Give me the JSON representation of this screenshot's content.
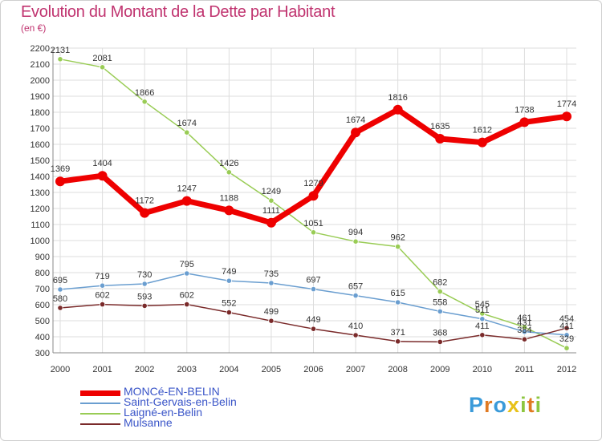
{
  "title": "Evolution du Montant de la Dette par Habitant",
  "subtitle": "(en €)",
  "logo": {
    "letters": [
      "P",
      "r",
      "o",
      "x",
      "i",
      "t",
      "i"
    ],
    "colors": [
      "#3a9ad9",
      "#e07a22",
      "#3a9ad9",
      "#e8c21a",
      "#8dc63f",
      "#e07a22",
      "#8dc63f"
    ]
  },
  "chart_data": {
    "type": "line",
    "x": [
      "2000",
      "2001",
      "2002",
      "2003",
      "2004",
      "2005",
      "2006",
      "2007",
      "2008",
      "2009",
      "2010",
      "2011",
      "2012"
    ],
    "ylim": [
      300,
      2200
    ],
    "yticks": [
      300,
      400,
      500,
      600,
      700,
      800,
      900,
      1000,
      1100,
      1200,
      1300,
      1400,
      1500,
      1600,
      1700,
      1800,
      1900,
      2000,
      2100,
      2200
    ],
    "grid": true,
    "legend_position": "bottom-left",
    "series": [
      {
        "name": "MONCé-EN-BELIN",
        "color": "#ee0000",
        "width": 7,
        "values": [
          1369,
          1404,
          1172,
          1247,
          1188,
          1111,
          1279,
          1674,
          1816,
          1635,
          1612,
          1738,
          1774
        ]
      },
      {
        "name": "Saint-Gervais-en-Belin",
        "color": "#6a9ed0",
        "width": 1.5,
        "values": [
          695,
          719,
          730,
          795,
          749,
          735,
          697,
          657,
          615,
          558,
          511,
          431,
          411
        ]
      },
      {
        "name": "Laigné-en-Belin",
        "color": "#99cc55",
        "width": 1.5,
        "values": [
          2131,
          2081,
          1866,
          1674,
          1426,
          1249,
          1051,
          994,
          962,
          682,
          545,
          461,
          329
        ]
      },
      {
        "name": "Mulsanne",
        "color": "#7a2a2a",
        "width": 1.5,
        "values": [
          580,
          602,
          593,
          602,
          552,
          499,
          449,
          410,
          371,
          368,
          411,
          384,
          454
        ]
      }
    ]
  }
}
